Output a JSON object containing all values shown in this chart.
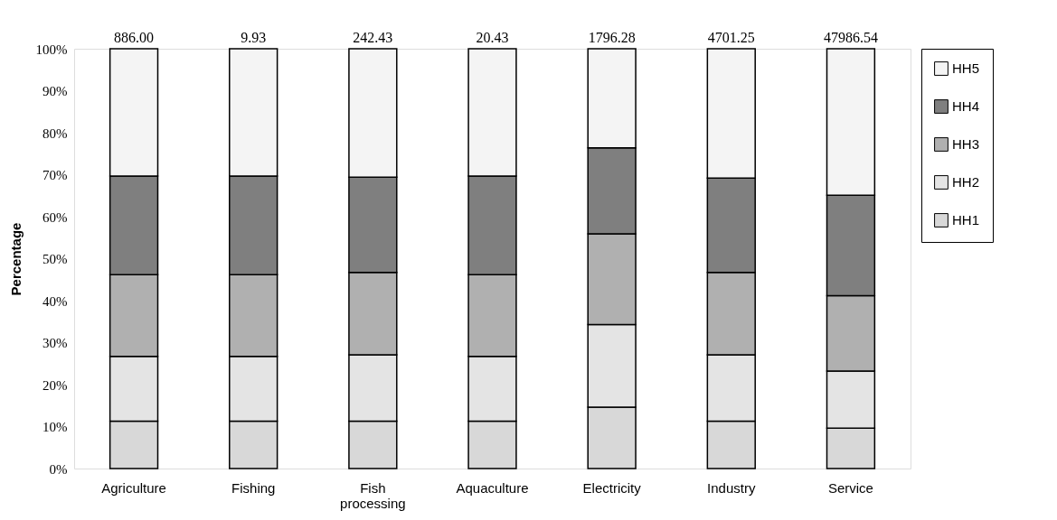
{
  "chart_data": {
    "type": "bar",
    "stacked": true,
    "ylabel": "Percentage",
    "categories": [
      "Agriculture",
      "Fishing",
      "Fish processing",
      "Aquaculture",
      "Electricity",
      "Industry",
      "Service"
    ],
    "series": [
      {
        "name": "HH1",
        "color": "#d8d8d8",
        "values": [
          11.3,
          11.3,
          11.3,
          11.3,
          14.6,
          11.3,
          9.6
        ]
      },
      {
        "name": "HH2",
        "color": "#e4e4e4",
        "values": [
          15.4,
          15.4,
          15.8,
          15.4,
          19.7,
          15.8,
          13.6
        ]
      },
      {
        "name": "HH3",
        "color": "#b0b0b0",
        "values": [
          19.5,
          19.5,
          19.6,
          19.5,
          21.6,
          19.6,
          18.0
        ]
      },
      {
        "name": "HH4",
        "color": "#7f7f7f",
        "values": [
          23.5,
          23.5,
          22.7,
          23.5,
          20.5,
          22.5,
          23.9
        ]
      },
      {
        "name": "HH5",
        "color": "#f4f4f4",
        "values": [
          30.3,
          30.3,
          30.6,
          30.3,
          23.6,
          30.8,
          34.9
        ]
      }
    ],
    "annotations": [
      {
        "text": "886.00",
        "x": "Agriculture",
        "y": 100
      },
      {
        "text": "9.93",
        "x": "Fishing",
        "y": 100
      },
      {
        "text": "242.43",
        "x": "Fish processing",
        "y": 100
      },
      {
        "text": "20.43",
        "x": "Aquaculture",
        "y": 100
      },
      {
        "text": "1796.28",
        "x": "Electricity",
        "y": 100
      },
      {
        "text": "4701.25",
        "x": "Industry",
        "y": 100
      },
      {
        "text": "47986.54",
        "x": "Service",
        "y": 100
      }
    ],
    "ylim": [
      0,
      100
    ],
    "yticks": [
      {
        "value": 0,
        "label": "0%"
      },
      {
        "value": 10,
        "label": "10%"
      },
      {
        "value": 20,
        "label": "20%"
      },
      {
        "value": 30,
        "label": "30%"
      },
      {
        "value": 40,
        "label": "40%"
      },
      {
        "value": 50,
        "label": "50%"
      },
      {
        "value": 60,
        "label": "60%"
      },
      {
        "value": 70,
        "label": "70%"
      },
      {
        "value": 80,
        "label": "80%"
      },
      {
        "value": 90,
        "label": "90%"
      },
      {
        "value": 100,
        "label": "100%"
      }
    ],
    "grid": false,
    "legend": "right"
  }
}
